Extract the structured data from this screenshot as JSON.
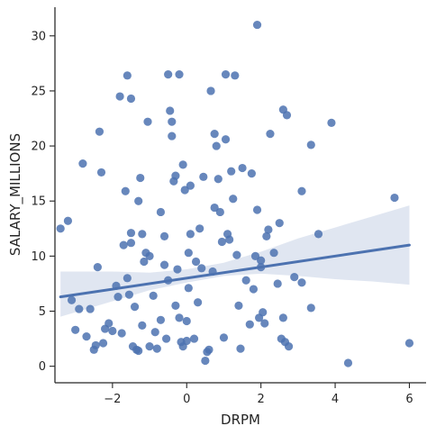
{
  "chart_data": {
    "type": "scatter",
    "xlabel": "DRPM",
    "ylabel": "SALARY_MILLIONS",
    "xlim": [
      -3.55,
      6.45
    ],
    "ylim": [
      -1.5,
      32.6
    ],
    "x_ticks": [
      -2,
      0,
      2,
      4,
      6
    ],
    "y_ticks": [
      0,
      5,
      10,
      15,
      20,
      25,
      30
    ],
    "grid": false,
    "colors": {
      "points": "#4c72b0",
      "line": "#4c72b0",
      "band": "#dde3ef",
      "axes": "#262626"
    },
    "points": [
      [
        -3.4,
        12.5
      ],
      [
        -3.2,
        13.2
      ],
      [
        -3.1,
        6.0
      ],
      [
        -3.0,
        3.3
      ],
      [
        -2.9,
        5.2
      ],
      [
        -2.8,
        18.4
      ],
      [
        -2.7,
        2.7
      ],
      [
        -2.6,
        5.2
      ],
      [
        -2.5,
        1.5
      ],
      [
        -2.45,
        1.9
      ],
      [
        -2.4,
        9.0
      ],
      [
        -2.35,
        21.3
      ],
      [
        -2.3,
        17.6
      ],
      [
        -2.25,
        2.1
      ],
      [
        -2.2,
        3.4
      ],
      [
        -2.1,
        3.9
      ],
      [
        -2.0,
        3.2
      ],
      [
        -1.9,
        7.3
      ],
      [
        -1.85,
        6.3
      ],
      [
        -1.8,
        24.5
      ],
      [
        -1.75,
        3.0
      ],
      [
        -1.7,
        11.0
      ],
      [
        -1.65,
        15.9
      ],
      [
        -1.6,
        26.4
      ],
      [
        -1.6,
        8.0
      ],
      [
        -1.55,
        6.5
      ],
      [
        -1.5,
        12.1
      ],
      [
        -1.5,
        11.2
      ],
      [
        -1.5,
        24.3
      ],
      [
        -1.45,
        1.8
      ],
      [
        -1.4,
        5.4
      ],
      [
        -1.35,
        1.5
      ],
      [
        -1.3,
        1.4
      ],
      [
        -1.3,
        15.0
      ],
      [
        -1.25,
        17.1
      ],
      [
        -1.2,
        12.0
      ],
      [
        -1.2,
        3.7
      ],
      [
        -1.15,
        9.5
      ],
      [
        -1.1,
        10.3
      ],
      [
        -1.05,
        22.2
      ],
      [
        -1.0,
        10.0
      ],
      [
        -1.0,
        1.8
      ],
      [
        -0.9,
        6.4
      ],
      [
        -0.85,
        3.1
      ],
      [
        -0.8,
        1.6
      ],
      [
        -0.7,
        14.0
      ],
      [
        -0.7,
        4.2
      ],
      [
        -0.6,
        11.8
      ],
      [
        -0.6,
        9.2
      ],
      [
        -0.55,
        2.5
      ],
      [
        -0.5,
        26.5
      ],
      [
        -0.5,
        7.8
      ],
      [
        -0.45,
        23.2
      ],
      [
        -0.4,
        22.2
      ],
      [
        -0.4,
        20.9
      ],
      [
        -0.35,
        16.8
      ],
      [
        -0.3,
        5.5
      ],
      [
        -0.3,
        17.3
      ],
      [
        -0.25,
        8.8
      ],
      [
        -0.2,
        26.5
      ],
      [
        -0.2,
        4.4
      ],
      [
        -0.15,
        2.2
      ],
      [
        -0.1,
        18.3
      ],
      [
        -0.1,
        1.8
      ],
      [
        -0.05,
        16.0
      ],
      [
        0.0,
        2.3
      ],
      [
        0.0,
        4.1
      ],
      [
        0.05,
        7.1
      ],
      [
        0.05,
        10.3
      ],
      [
        0.1,
        12.0
      ],
      [
        0.1,
        16.4
      ],
      [
        0.2,
        2.5
      ],
      [
        0.25,
        9.5
      ],
      [
        0.3,
        5.8
      ],
      [
        0.35,
        12.5
      ],
      [
        0.4,
        8.9
      ],
      [
        0.45,
        17.2
      ],
      [
        0.5,
        0.5
      ],
      [
        0.55,
        1.3
      ],
      [
        0.6,
        1.5
      ],
      [
        0.65,
        25.0
      ],
      [
        0.7,
        8.6
      ],
      [
        0.75,
        21.1
      ],
      [
        0.75,
        14.4
      ],
      [
        0.8,
        20.0
      ],
      [
        0.85,
        17.0
      ],
      [
        0.9,
        14.0
      ],
      [
        0.95,
        11.3
      ],
      [
        1.0,
        2.6
      ],
      [
        1.05,
        26.5
      ],
      [
        1.05,
        20.6
      ],
      [
        1.1,
        12.0
      ],
      [
        1.15,
        11.5
      ],
      [
        1.2,
        17.7
      ],
      [
        1.25,
        15.2
      ],
      [
        1.3,
        26.4
      ],
      [
        1.35,
        10.1
      ],
      [
        1.4,
        5.5
      ],
      [
        1.45,
        1.6
      ],
      [
        1.5,
        18.0
      ],
      [
        1.6,
        7.8
      ],
      [
        1.7,
        3.8
      ],
      [
        1.75,
        17.5
      ],
      [
        1.8,
        7.0
      ],
      [
        1.85,
        10.0
      ],
      [
        1.9,
        31.0
      ],
      [
        1.9,
        14.2
      ],
      [
        1.95,
        4.4
      ],
      [
        2.0,
        9.0
      ],
      [
        2.0,
        9.6
      ],
      [
        2.05,
        4.9
      ],
      [
        2.1,
        3.9
      ],
      [
        2.15,
        11.8
      ],
      [
        2.2,
        12.4
      ],
      [
        2.25,
        21.1
      ],
      [
        2.35,
        10.3
      ],
      [
        2.45,
        7.5
      ],
      [
        2.5,
        13.0
      ],
      [
        2.55,
        2.5
      ],
      [
        2.6,
        23.3
      ],
      [
        2.6,
        4.4
      ],
      [
        2.65,
        2.2
      ],
      [
        2.7,
        22.8
      ],
      [
        2.75,
        1.8
      ],
      [
        2.9,
        8.1
      ],
      [
        3.1,
        7.6
      ],
      [
        3.1,
        15.9
      ],
      [
        3.35,
        20.1
      ],
      [
        3.35,
        5.3
      ],
      [
        3.55,
        12.0
      ],
      [
        3.9,
        22.1
      ],
      [
        4.35,
        0.3
      ],
      [
        5.6,
        15.3
      ],
      [
        6.0,
        2.1
      ]
    ],
    "regression": {
      "x": [
        -3.4,
        6.0
      ],
      "y": [
        6.3,
        11.0
      ]
    },
    "confidence_band": {
      "x": [
        -3.4,
        -2.0,
        -1.0,
        0.0,
        1.0,
        2.0,
        3.0,
        4.0,
        5.0,
        6.0
      ],
      "lower": [
        4.5,
        5.9,
        6.9,
        7.6,
        8.2,
        8.4,
        8.2,
        7.9,
        7.7,
        7.4
      ],
      "upper": [
        8.6,
        8.6,
        8.5,
        8.8,
        9.4,
        10.4,
        11.6,
        12.6,
        13.6,
        14.6
      ]
    }
  }
}
